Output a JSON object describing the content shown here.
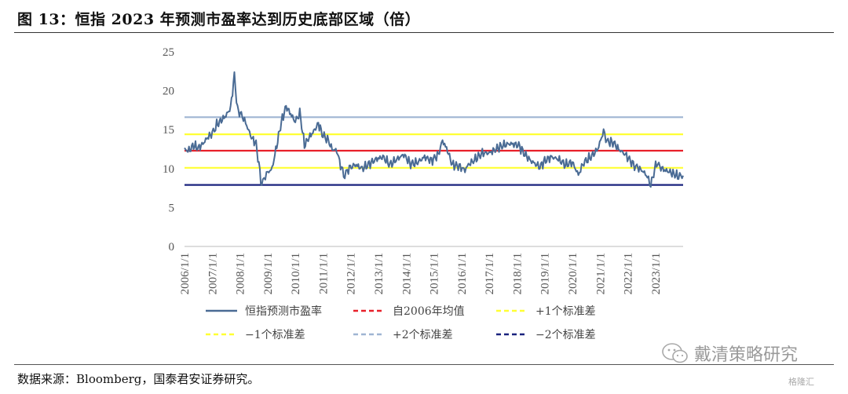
{
  "header": {
    "title": "图 13：恒指 2023 年预测市盈率达到历史底部区域（倍）"
  },
  "footer": {
    "source": "数据来源：Bloomberg，国泰君安证券研究。"
  },
  "watermark": {
    "text": "戴清策略研究",
    "sub": "格隆汇"
  },
  "colors": {
    "pe_line": "#4a6b94",
    "mean": "#e8202a",
    "sd1": "#ffff33",
    "sd2_plus": "#9fb5d3",
    "sd2_minus": "#1a237e"
  },
  "chart_data": {
    "type": "line",
    "title": "恒指 2023 年预测市盈率达到历史底部区域（倍）",
    "ylim": [
      0,
      25
    ],
    "yticks": [
      "0",
      "5",
      "10",
      "15",
      "20",
      "25"
    ],
    "xlim": [
      "2006-01-01",
      "2023-12-31"
    ],
    "xticks": [
      "2006/1/1",
      "2007/1/1",
      "2008/1/1",
      "2009/1/1",
      "2010/1/1",
      "2011/1/1",
      "2012/1/1",
      "2013/1/1",
      "2014/1/1",
      "2015/1/1",
      "2016/1/1",
      "2017/1/1",
      "2018/1/1",
      "2019/1/1",
      "2020/1/1",
      "2021/1/1",
      "2022/1/1",
      "2023/1/1"
    ],
    "legend_position": "bottom",
    "series": [
      {
        "name": "恒指预测市盈率",
        "kind": "line",
        "x": [
          "2006-01-01",
          "2006-03-01",
          "2006-05-01",
          "2006-07-01",
          "2006-09-01",
          "2006-11-01",
          "2007-01-01",
          "2007-03-01",
          "2007-05-01",
          "2007-07-01",
          "2007-09-01",
          "2007-10-20",
          "2007-12-01",
          "2008-02-01",
          "2008-04-01",
          "2008-06-01",
          "2008-08-01",
          "2008-10-15",
          "2008-11-15",
          "2009-01-01",
          "2009-03-01",
          "2009-05-01",
          "2009-07-01",
          "2009-09-01",
          "2009-11-01",
          "2010-01-01",
          "2010-03-01",
          "2010-05-01",
          "2010-07-01",
          "2010-09-01",
          "2010-11-01",
          "2011-01-01",
          "2011-03-01",
          "2011-05-01",
          "2011-07-01",
          "2011-09-01",
          "2011-10-15",
          "2011-12-01",
          "2012-03-01",
          "2012-06-01",
          "2012-09-01",
          "2012-12-01",
          "2013-03-01",
          "2013-06-01",
          "2013-09-01",
          "2013-12-01",
          "2014-03-01",
          "2014-06-01",
          "2014-09-01",
          "2014-12-01",
          "2015-03-01",
          "2015-04-25",
          "2015-07-01",
          "2015-09-01",
          "2015-12-01",
          "2016-02-15",
          "2016-04-01",
          "2016-07-01",
          "2016-10-01",
          "2017-01-01",
          "2017-04-01",
          "2017-07-01",
          "2017-10-01",
          "2018-01-25",
          "2018-04-01",
          "2018-07-01",
          "2018-10-30",
          "2019-01-01",
          "2019-04-01",
          "2019-07-01",
          "2019-10-01",
          "2020-01-01",
          "2020-03-20",
          "2020-06-01",
          "2020-09-01",
          "2020-12-01",
          "2021-02-15",
          "2021-04-01",
          "2021-07-01",
          "2021-09-01",
          "2021-12-01",
          "2022-03-15",
          "2022-05-01",
          "2022-07-01",
          "2022-09-01",
          "2022-10-31",
          "2023-01-15",
          "2023-03-01",
          "2023-05-01",
          "2023-07-01",
          "2023-09-01",
          "2023-11-01",
          "2023-12-31"
        ],
        "y": [
          12.5,
          12.3,
          13.0,
          12.6,
          13.2,
          14.0,
          14.5,
          15.6,
          16.2,
          16.8,
          17.8,
          22.0,
          17.5,
          16.8,
          15.5,
          14.0,
          13.2,
          7.8,
          8.8,
          9.5,
          10.0,
          13.0,
          16.0,
          18.0,
          17.0,
          16.0,
          17.2,
          13.0,
          14.0,
          14.8,
          15.8,
          14.2,
          13.8,
          12.5,
          12.3,
          10.0,
          9.0,
          10.0,
          10.5,
          10.0,
          10.6,
          11.2,
          11.5,
          10.5,
          11.2,
          11.8,
          10.6,
          10.8,
          11.5,
          11.0,
          11.8,
          13.6,
          12.3,
          10.5,
          10.3,
          9.8,
          10.5,
          11.2,
          12.0,
          12.0,
          12.5,
          13.0,
          13.2,
          13.0,
          12.0,
          11.0,
          10.2,
          11.0,
          11.5,
          11.2,
          10.5,
          10.8,
          9.2,
          10.8,
          11.5,
          12.5,
          14.8,
          13.5,
          13.3,
          12.5,
          11.8,
          10.5,
          10.2,
          9.8,
          9.2,
          7.9,
          10.8,
          10.2,
          9.8,
          9.6,
          9.3,
          9.0,
          9.1
        ]
      },
      {
        "name": "自2006年均值",
        "kind": "hline",
        "value": 12.3
      },
      {
        "name": "+1个标准差",
        "kind": "hline",
        "value": 14.4
      },
      {
        "name": "−1个标准差",
        "kind": "hline",
        "value": 10.1
      },
      {
        "name": "+2个标准差",
        "kind": "hline",
        "value": 16.6
      },
      {
        "name": "−2个标准差",
        "kind": "hline",
        "value": 7.9
      }
    ]
  }
}
